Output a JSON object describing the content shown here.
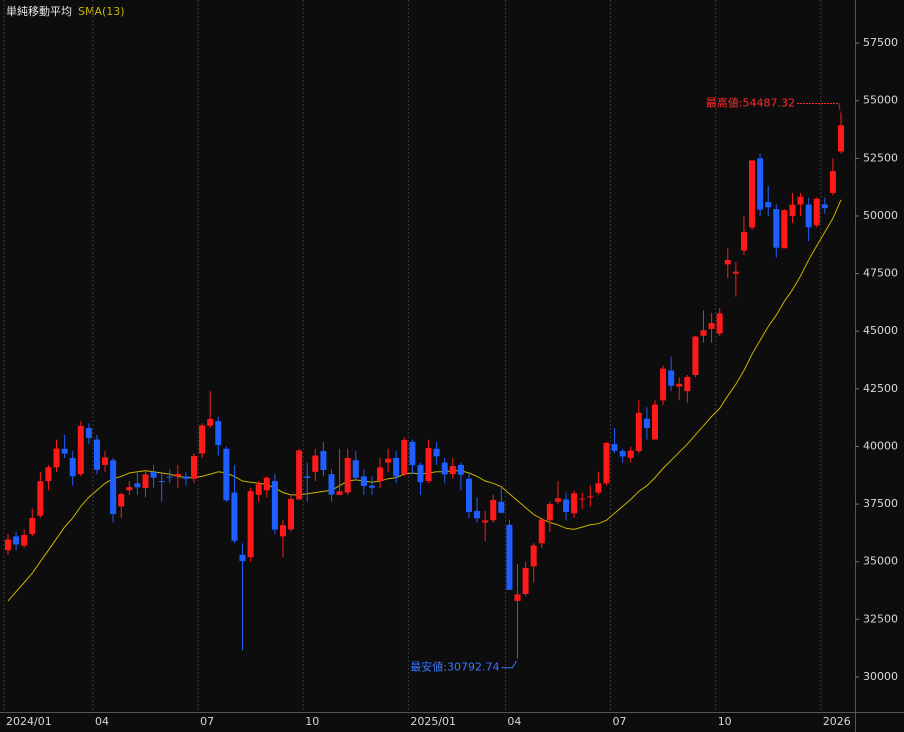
{
  "chart_data": {
    "type": "candlestick",
    "legend_title": "単純移動平均",
    "categories": [
      "2024/01",
      null,
      null,
      null,
      null,
      null,
      null,
      null,
      null,
      null,
      null,
      "04",
      null,
      null,
      null,
      null,
      null,
      null,
      null,
      null,
      null,
      null,
      null,
      null,
      "07",
      null,
      null,
      null,
      null,
      null,
      null,
      null,
      null,
      null,
      null,
      null,
      null,
      "10",
      null,
      null,
      null,
      null,
      null,
      null,
      null,
      null,
      null,
      null,
      null,
      null,
      "2025/01",
      null,
      null,
      null,
      null,
      null,
      null,
      null,
      null,
      null,
      null,
      null,
      "04",
      null,
      null,
      null,
      null,
      null,
      null,
      null,
      null,
      null,
      null,
      null,
      null,
      "07",
      null,
      null,
      null,
      null,
      null,
      null,
      null,
      null,
      null,
      null,
      null,
      null,
      "10",
      null,
      null,
      null,
      null,
      null,
      null,
      null,
      null,
      null,
      null,
      null,
      null,
      "2026",
      null,
      null
    ],
    "open": [
      35500,
      36100,
      35700,
      36200,
      37000,
      38500,
      39100,
      39900,
      39500,
      38800,
      40800,
      40300,
      39200,
      39400,
      37400,
      38100,
      38400,
      38200,
      38900,
      38500,
      38700,
      38700,
      38700,
      38600,
      39700,
      40900,
      41100,
      39900,
      38000,
      35300,
      35200,
      37900,
      38100,
      38500,
      36100,
      36400,
      37700,
      38700,
      38900,
      39800,
      38800,
      37900,
      38000,
      39400,
      38700,
      38300,
      38500,
      39300,
      39500,
      38800,
      40200,
      39200,
      38500,
      39900,
      39300,
      38800,
      39200,
      38600,
      37200,
      36700,
      36800,
      37600,
      36600,
      33300,
      33600,
      34800,
      35800,
      36800,
      37600,
      37700,
      37100,
      37700,
      37800,
      38000,
      38400,
      40100,
      39800,
      39500,
      39800,
      41200,
      40300,
      42000,
      43300,
      42600,
      42400,
      43100,
      44800,
      45100,
      44900,
      47900,
      47500,
      48500,
      49500,
      52500,
      50600,
      50300,
      48600,
      50000,
      50500,
      50500,
      49600,
      50500,
      51000,
      52800
    ],
    "high": [
      36200,
      36300,
      36400,
      37300,
      38900,
      39200,
      40300,
      40500,
      39800,
      41100,
      41000,
      40500,
      39800,
      39500,
      38000,
      38500,
      38900,
      38900,
      39200,
      38900,
      39000,
      39200,
      38900,
      39700,
      41000,
      42400,
      41300,
      40000,
      39200,
      35800,
      38200,
      38500,
      38700,
      38800,
      36800,
      37900,
      39900,
      39300,
      39900,
      40200,
      39000,
      39900,
      39900,
      39800,
      39000,
      38700,
      39500,
      39900,
      39800,
      40400,
      40300,
      39300,
      40300,
      40200,
      39500,
      39500,
      39300,
      38800,
      37800,
      37200,
      37900,
      38200,
      36800,
      34900,
      35000,
      35800,
      36900,
      37600,
      38500,
      38000,
      38100,
      38000,
      38300,
      38900,
      40200,
      40800,
      39900,
      40000,
      42000,
      41700,
      42000,
      43500,
      43900,
      43000,
      43100,
      44800,
      45900,
      45800,
      46000,
      48600,
      48000,
      50000,
      52400,
      52700,
      51300,
      50500,
      50300,
      51000,
      51000,
      50800,
      50800,
      50800,
      52500,
      54487.32
    ],
    "low": [
      35300,
      35500,
      35600,
      36100,
      36900,
      38100,
      38900,
      39500,
      38300,
      38700,
      40100,
      38800,
      38900,
      36700,
      36900,
      37900,
      37900,
      37800,
      38200,
      37600,
      38400,
      38200,
      38300,
      38400,
      39500,
      40800,
      39600,
      37600,
      35800,
      31156,
      35000,
      37600,
      37800,
      36200,
      35200,
      36300,
      37700,
      37600,
      38500,
      38700,
      37600,
      37900,
      37900,
      38500,
      37900,
      37900,
      38200,
      38900,
      38400,
      38700,
      38800,
      37900,
      38400,
      39200,
      38400,
      38600,
      38100,
      36900,
      36700,
      35900,
      36700,
      37100,
      33800,
      30792.74,
      33500,
      34100,
      35600,
      36300,
      37500,
      36800,
      36900,
      37300,
      37400,
      37900,
      38300,
      39700,
      39300,
      39300,
      39700,
      40300,
      40300,
      41800,
      42400,
      42000,
      41900,
      43000,
      44500,
      44500,
      44800,
      47300,
      46500,
      48300,
      49400,
      50000,
      50000,
      48200,
      48600,
      49700,
      50000,
      48900,
      49500,
      50100,
      50900,
      52700
    ],
    "close": [
      35963,
      35751,
      36158,
      36897,
      38487,
      39098,
      39910,
      39688,
      38707,
      40888,
      40369,
      38992,
      39523,
      37068,
      37934,
      38236,
      38229,
      38787,
      38646,
      38487,
      38683,
      38814,
      38596,
      39583,
      40912,
      41190,
      40063,
      37667,
      35909,
      35025,
      38062,
      38364,
      38647,
      36391,
      36581,
      37723,
      39829,
      38635,
      39605,
      38981,
      37913,
      38053,
      39500,
      38642,
      38283,
      38208,
      39091,
      39470,
      38701,
      40281,
      39190,
      38451,
      39931,
      39572,
      38787,
      39149,
      38776,
      37155,
      36887,
      36790,
      37677,
      37120,
      33780,
      33585,
      34730,
      35705,
      36830,
      37503,
      37753,
      37160,
      37965,
      37741,
      37834,
      38403,
      40150,
      39811,
      39570,
      39819,
      41456,
      40800,
      41820,
      43378,
      42633,
      42718,
      43018,
      44768,
      45045,
      45354,
      45769,
      48088,
      47582,
      49299,
      52411,
      50276,
      50376,
      48625,
      50253,
      50491,
      50836,
      49507,
      50750,
      50339,
      51940,
      53936
    ],
    "up_color": "#ff1a1a",
    "down_color": "#1f5fff",
    "series": [
      {
        "name": "SMA(13)",
        "color": "#c8b400",
        "values": [
          33300,
          33700,
          34100,
          34500,
          35000,
          35500,
          36000,
          36500,
          36900,
          37400,
          37800,
          38100,
          38400,
          38600,
          38700,
          38850,
          38900,
          38950,
          38900,
          38850,
          38800,
          38700,
          38650,
          38650,
          38700,
          38800,
          38900,
          38850,
          38700,
          38500,
          38450,
          38400,
          38350,
          38200,
          38000,
          37900,
          37900,
          37950,
          38000,
          38050,
          38100,
          38300,
          38500,
          38550,
          38500,
          38450,
          38500,
          38600,
          38650,
          38800,
          38850,
          38800,
          38850,
          38900,
          38900,
          38950,
          38950,
          38850,
          38700,
          38500,
          38400,
          38250,
          37950,
          37650,
          37350,
          37050,
          36850,
          36700,
          36600,
          36450,
          36400,
          36500,
          36600,
          36650,
          36800,
          37100,
          37400,
          37700,
          38050,
          38300,
          38650,
          39050,
          39400,
          39750,
          40100,
          40500,
          40900,
          41300,
          41650,
          42200,
          42700,
          43300,
          44000,
          44600,
          45200,
          45700,
          46300,
          46800,
          47400,
          48100,
          48700,
          49300,
          49900,
          50700
        ]
      }
    ],
    "annotations": [
      {
        "text": "最高値:54487.32",
        "color": "#ff2a2a"
      },
      {
        "text": "最安値:30792.74",
        "color": "#3a78ff"
      }
    ],
    "ylim": [
      28480,
      59370
    ],
    "yticks": [
      30000,
      32500,
      35000,
      37500,
      40000,
      42500,
      45000,
      47500,
      50000,
      52500,
      55000,
      57500
    ],
    "grid": true
  }
}
